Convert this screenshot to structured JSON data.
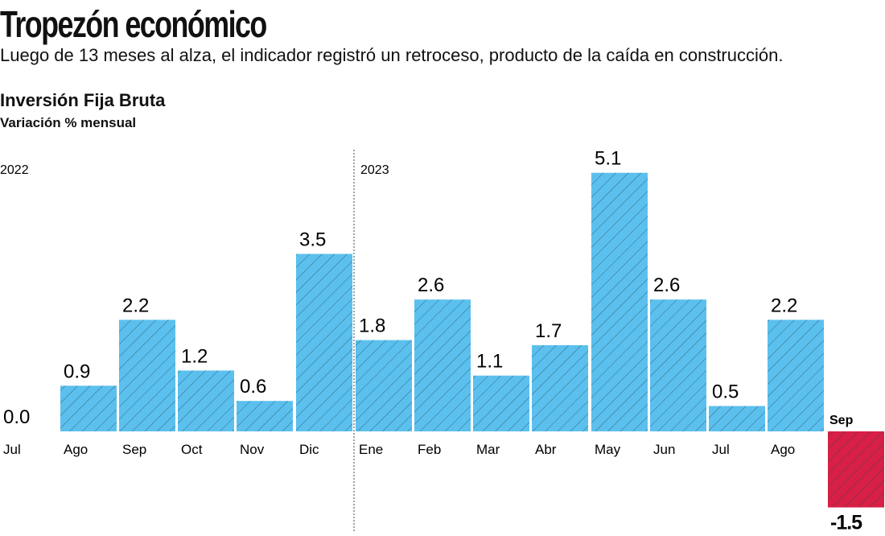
{
  "title": "Tropezón económico",
  "subtitle": "Luego de 13 meses al alza, el indicador registró un retroceso, producto de la caída en construcción.",
  "chart_data": {
    "type": "bar",
    "title": "Inversión Fija Bruta",
    "ylabel": "Variación % mensual",
    "year_labels": [
      "2022",
      "2023"
    ],
    "categories": [
      "Jul",
      "Ago",
      "Sep",
      "Oct",
      "Nov",
      "Dic",
      "Ene",
      "Feb",
      "Mar",
      "Abr",
      "May",
      "Jun",
      "Jul",
      "Ago",
      "Sep"
    ],
    "years": [
      "2022",
      "2022",
      "2022",
      "2022",
      "2022",
      "2022",
      "2023",
      "2023",
      "2023",
      "2023",
      "2023",
      "2023",
      "2023",
      "2023",
      "2023"
    ],
    "values": [
      0.0,
      0.9,
      2.2,
      1.2,
      0.6,
      3.5,
      1.8,
      2.6,
      1.1,
      1.7,
      5.1,
      2.6,
      0.5,
      2.2,
      -1.5
    ],
    "value_labels": [
      "0.0",
      "0.9",
      "2.2",
      "1.2",
      "0.6",
      "3.5",
      "1.8",
      "2.6",
      "1.1",
      "1.7",
      "5.1",
      "2.6",
      "0.5",
      "2.2",
      "-1.5"
    ],
    "ylim": [
      -1.5,
      5.1
    ],
    "grid": false,
    "colors": {
      "positive": "#5bc0ee",
      "negative": "#d81f45",
      "hatch": "#2a4a5a"
    }
  }
}
